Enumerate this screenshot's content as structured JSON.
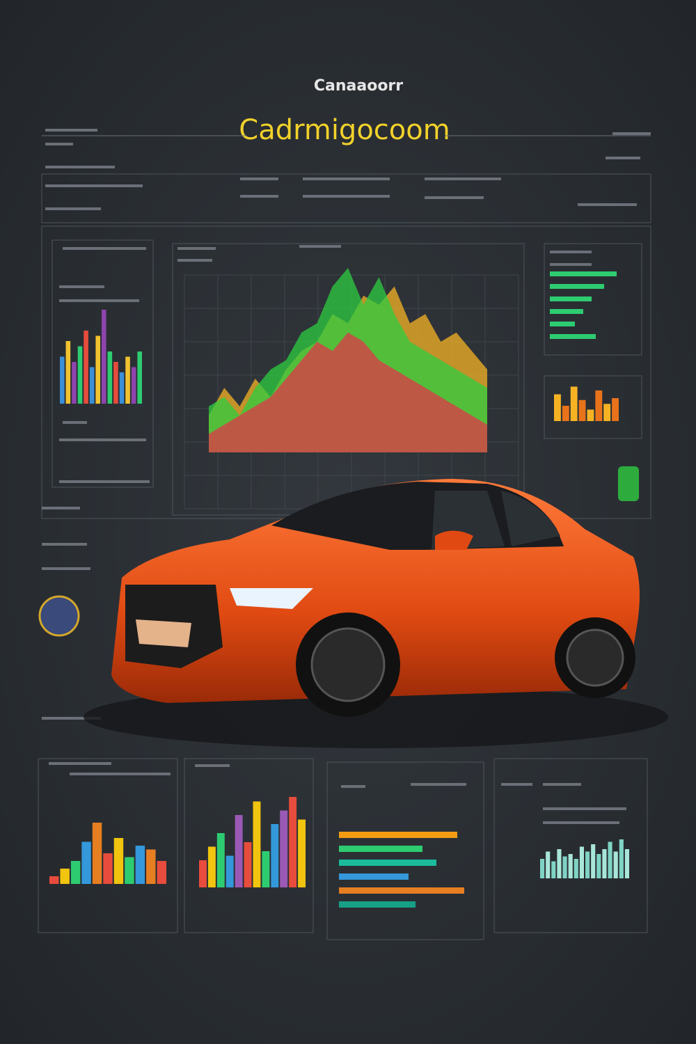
{
  "header": {
    "kicker": "Canaaoorr",
    "title": "Cadrmigocoom"
  },
  "panels": {
    "left_bars": {
      "colors": [
        "#3a8fd8",
        "#f2c230",
        "#8e44ad",
        "#2ecc71",
        "#e74c3c"
      ],
      "values": [
        45,
        60,
        40,
        55,
        70,
        35,
        65,
        90,
        50,
        40,
        30,
        45,
        35,
        50
      ]
    },
    "main_area": {
      "ylim": [
        0,
        100
      ],
      "series": [
        {
          "color": "#f5b324",
          "values": [
            20,
            35,
            25,
            40,
            30,
            45,
            55,
            60,
            75,
            70,
            85,
            80,
            90,
            70,
            75,
            60,
            65,
            55,
            45
          ]
        },
        {
          "color": "#2ecc40",
          "values": [
            25,
            30,
            20,
            35,
            45,
            50,
            65,
            70,
            90,
            100,
            80,
            95,
            75,
            60,
            55,
            50,
            45,
            40,
            35
          ]
        },
        {
          "color": "#e0364a",
          "values": [
            10,
            15,
            20,
            25,
            30,
            40,
            50,
            60,
            55,
            65,
            60,
            50,
            45,
            40,
            35,
            30,
            25,
            20,
            15
          ]
        }
      ]
    },
    "right_hbars": {
      "color": "#2ecc71",
      "values": [
        80,
        65,
        50,
        40,
        30,
        55
      ]
    },
    "right_bars": {
      "colors": [
        "#f5b324",
        "#e8731a"
      ],
      "values": [
        70,
        40,
        90,
        55,
        30,
        80,
        45,
        60
      ]
    },
    "bottom": [
      {
        "colors": [
          "#e74c3c",
          "#f1c40f",
          "#2ecc71",
          "#3498db",
          "#e67e22"
        ],
        "values": [
          10,
          20,
          30,
          55,
          80,
          40,
          60,
          35,
          50,
          45,
          30
        ]
      },
      {
        "colors": [
          "#e74c3c",
          "#f1c40f",
          "#2ecc71",
          "#3498db",
          "#9b59b6"
        ],
        "values": [
          30,
          45,
          60,
          35,
          80,
          50,
          95,
          40,
          70,
          85,
          100,
          75
        ]
      },
      {
        "colors": [
          "#f39c12",
          "#2ecc71",
          "#1abc9c",
          "#3498db",
          "#e67e22",
          "#16a085"
        ],
        "values": [
          85,
          60,
          70,
          50,
          90,
          55
        ]
      },
      {
        "colors": [
          "#7fd3c4",
          "#a8e6d9"
        ],
        "values": [
          40,
          55,
          35,
          60,
          45,
          50,
          40,
          65,
          55,
          70,
          50,
          60,
          75,
          55,
          80,
          60
        ]
      }
    ]
  }
}
